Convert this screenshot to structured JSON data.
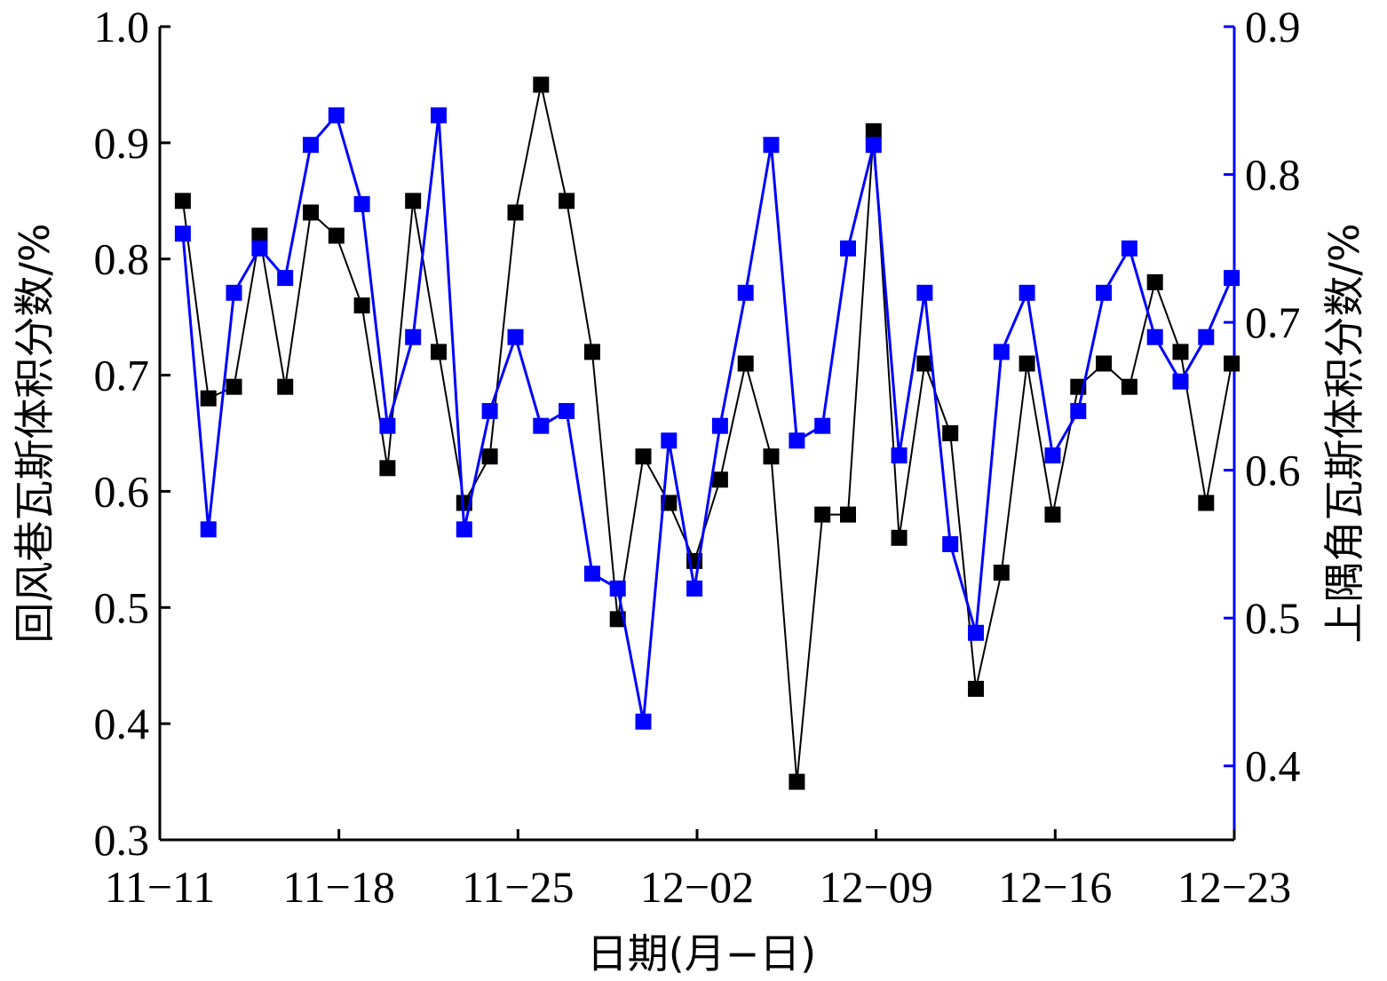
{
  "chart_data": {
    "type": "line",
    "xlabel": "日期(月−日)",
    "ylabel_left": "回风巷瓦斯体积分数/%",
    "ylabel_right": "上隅角瓦斯体积分数/%",
    "x_tick_labels": [
      "11−11",
      "11−18",
      "11−25",
      "12−02",
      "12−09",
      "12−16",
      "12−23"
    ],
    "x_tick_days": [
      0,
      7,
      14,
      21,
      28,
      35,
      42
    ],
    "x_range_days": [
      0,
      42
    ],
    "ylim_left": [
      0.3,
      1.0
    ],
    "yticks_left": [
      "0.3",
      "0.4",
      "0.5",
      "0.6",
      "0.7",
      "0.8",
      "0.9",
      "1.0"
    ],
    "ylim_right": [
      0.35,
      0.9
    ],
    "yticks_right": [
      "0.4",
      "0.5",
      "0.6",
      "0.7",
      "0.8",
      "0.9"
    ],
    "grid": false,
    "legend": "none",
    "series": [
      {
        "axis": "left",
        "color": "#000000",
        "marker": "square",
        "x_days": [
          0.9,
          1.9,
          2.9,
          3.9,
          4.9,
          5.9,
          6.9,
          7.9,
          8.9,
          9.9,
          10.9,
          11.9,
          12.9,
          13.9,
          14.9,
          15.9,
          16.9,
          17.9,
          18.9,
          19.9,
          20.9,
          21.9,
          22.9,
          23.9,
          24.9,
          25.9,
          26.9,
          27.9,
          28.9,
          29.9,
          30.9,
          31.9,
          32.9,
          33.9,
          34.9,
          35.9,
          36.9,
          37.9,
          38.9,
          39.9,
          40.9,
          41.9
        ],
        "values": [
          0.85,
          0.68,
          0.69,
          0.82,
          0.69,
          0.84,
          0.82,
          0.76,
          0.62,
          0.85,
          0.72,
          0.59,
          0.63,
          0.84,
          0.95,
          0.85,
          0.72,
          0.49,
          0.63,
          0.59,
          0.54,
          0.61,
          0.71,
          0.63,
          0.35,
          0.58,
          0.58,
          0.91,
          0.56,
          0.71,
          0.65,
          0.43,
          0.53,
          0.71,
          0.58,
          0.69,
          0.71,
          0.69,
          0.78,
          0.72,
          0.59,
          0.71
        ]
      },
      {
        "axis": "right",
        "color": "#0000ff",
        "marker": "square",
        "x_days": [
          0.9,
          1.9,
          2.9,
          3.9,
          4.9,
          5.9,
          6.9,
          7.9,
          8.9,
          9.9,
          10.9,
          11.9,
          12.9,
          13.9,
          14.9,
          15.9,
          16.9,
          17.9,
          18.9,
          19.9,
          20.9,
          21.9,
          22.9,
          23.9,
          24.9,
          25.9,
          26.9,
          27.9,
          28.9,
          29.9,
          30.9,
          31.9,
          32.9,
          33.9,
          34.9,
          35.9,
          36.9,
          37.9,
          38.9,
          39.9,
          40.9,
          41.9
        ],
        "values": [
          0.76,
          0.56,
          0.72,
          0.75,
          0.73,
          0.82,
          0.84,
          0.78,
          0.63,
          0.69,
          0.84,
          0.56,
          0.64,
          0.69,
          0.63,
          0.64,
          0.53,
          0.52,
          0.43,
          0.62,
          0.52,
          0.63,
          0.72,
          0.82,
          0.62,
          0.63,
          0.75,
          0.82,
          0.61,
          0.72,
          0.55,
          0.49,
          0.68,
          0.72,
          0.61,
          0.64,
          0.72,
          0.75,
          0.69,
          0.66,
          0.69,
          0.73
        ]
      }
    ]
  }
}
